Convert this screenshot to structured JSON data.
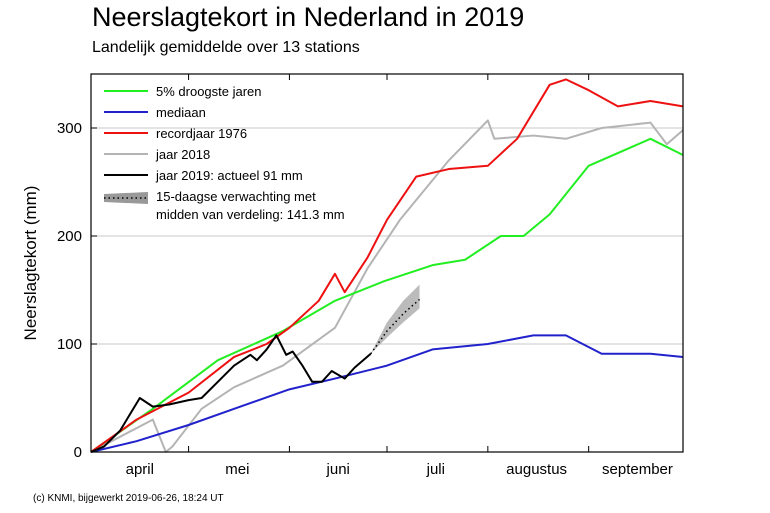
{
  "title": "Neerslagtekort in Nederland in 2019",
  "subtitle": "Landelijk gemiddelde over 13 stations",
  "footer": "(c) KNMI, bijgewerkt 2019-06-26, 18:24 UT",
  "chart_data": {
    "type": "line",
    "ylabel": "Neerslagtekort (mm)",
    "xlabel": "",
    "ylim": [
      0,
      350
    ],
    "y_ticks": [
      0,
      100,
      200,
      300
    ],
    "x_domain": [
      "2019-04-01",
      "2019-09-30"
    ],
    "x_ticks": [
      {
        "label": "april",
        "date": "2019-04-16"
      },
      {
        "label": "mei",
        "date": "2019-05-16"
      },
      {
        "label": "juni",
        "date": "2019-06-16"
      },
      {
        "label": "juli",
        "date": "2019-07-16"
      },
      {
        "label": "augustus",
        "date": "2019-08-16"
      },
      {
        "label": "september",
        "date": "2019-09-16"
      }
    ],
    "grid": "horizontal",
    "legend_position": "top-left",
    "legend_entries": [
      {
        "label": "5% droogste jaren",
        "color": "#22ee22"
      },
      {
        "label": "mediaan",
        "color": "#2222cc"
      },
      {
        "label": "recordjaar 1976",
        "color": "#ee1111"
      },
      {
        "label": "jaar 2018",
        "color": "#b4b4b4"
      },
      {
        "label": "jaar 2019: actueel 91 mm",
        "color": "#000000"
      }
    ],
    "forecast_legend": {
      "line1": "15-daagse verwachting met",
      "line2": "midden van verdeling: 141.3 mm",
      "color": "#999999"
    },
    "series": [
      {
        "name": "5% droogste jaren",
        "color": "#22ee22",
        "x": [
          "2019-04-01",
          "2019-04-20",
          "2019-05-10",
          "2019-05-30",
          "2019-06-15",
          "2019-06-30",
          "2019-07-15",
          "2019-07-25",
          "2019-08-05",
          "2019-08-12",
          "2019-08-20",
          "2019-09-01",
          "2019-09-20",
          "2019-09-30"
        ],
        "values": [
          0,
          40,
          85,
          112,
          140,
          158,
          173,
          178,
          200,
          200,
          220,
          265,
          290,
          275
        ]
      },
      {
        "name": "mediaan",
        "color": "#2222cc",
        "x": [
          "2019-04-01",
          "2019-04-15",
          "2019-05-01",
          "2019-05-15",
          "2019-06-01",
          "2019-06-15",
          "2019-07-01",
          "2019-07-15",
          "2019-08-01",
          "2019-08-15",
          "2019-08-25",
          "2019-09-05",
          "2019-09-20",
          "2019-09-30"
        ],
        "values": [
          0,
          10,
          25,
          40,
          58,
          68,
          80,
          95,
          100,
          108,
          108,
          91,
          91,
          88
        ]
      },
      {
        "name": "recordjaar 1976",
        "color": "#ee1111",
        "x": [
          "2019-04-01",
          "2019-04-15",
          "2019-05-01",
          "2019-05-15",
          "2019-05-25",
          "2019-06-01",
          "2019-06-10",
          "2019-06-15",
          "2019-06-18",
          "2019-06-25",
          "2019-07-01",
          "2019-07-10",
          "2019-07-20",
          "2019-08-01",
          "2019-08-10",
          "2019-08-20",
          "2019-08-25",
          "2019-09-01",
          "2019-09-10",
          "2019-09-20",
          "2019-09-30"
        ],
        "values": [
          0,
          30,
          55,
          88,
          100,
          115,
          140,
          165,
          148,
          180,
          215,
          255,
          262,
          265,
          290,
          340,
          345,
          335,
          320,
          325,
          320
        ]
      },
      {
        "name": "jaar 2018",
        "color": "#b4b4b4",
        "x": [
          "2019-04-01",
          "2019-04-20",
          "2019-04-24",
          "2019-04-26",
          "2019-05-05",
          "2019-05-15",
          "2019-05-30",
          "2019-06-15",
          "2019-06-25",
          "2019-07-05",
          "2019-07-20",
          "2019-08-01",
          "2019-08-03",
          "2019-08-15",
          "2019-08-25",
          "2019-09-05",
          "2019-09-20",
          "2019-09-25",
          "2019-09-30"
        ],
        "values": [
          0,
          30,
          0,
          5,
          40,
          60,
          80,
          115,
          170,
          215,
          270,
          307,
          290,
          293,
          290,
          300,
          305,
          285,
          298
        ]
      },
      {
        "name": "jaar 2019: actueel 91 mm",
        "color": "#000000",
        "x": [
          "2019-04-01",
          "2019-04-05",
          "2019-04-10",
          "2019-04-16",
          "2019-04-20",
          "2019-04-25",
          "2019-05-01",
          "2019-05-05",
          "2019-05-10",
          "2019-05-15",
          "2019-05-20",
          "2019-05-22",
          "2019-05-25",
          "2019-05-28",
          "2019-05-31",
          "2019-06-02",
          "2019-06-05",
          "2019-06-08",
          "2019-06-11",
          "2019-06-14",
          "2019-06-18",
          "2019-06-21",
          "2019-06-26"
        ],
        "values": [
          0,
          5,
          20,
          50,
          42,
          44,
          48,
          50,
          65,
          80,
          90,
          85,
          95,
          108,
          90,
          93,
          80,
          65,
          65,
          75,
          68,
          78,
          91
        ]
      }
    ],
    "forecast": {
      "x": [
        "2019-06-26",
        "2019-07-01",
        "2019-07-06",
        "2019-07-11"
      ],
      "mid": [
        91,
        112,
        128,
        141.3
      ],
      "low": [
        91,
        106,
        120,
        133
      ],
      "high": [
        91,
        120,
        140,
        155
      ]
    }
  }
}
